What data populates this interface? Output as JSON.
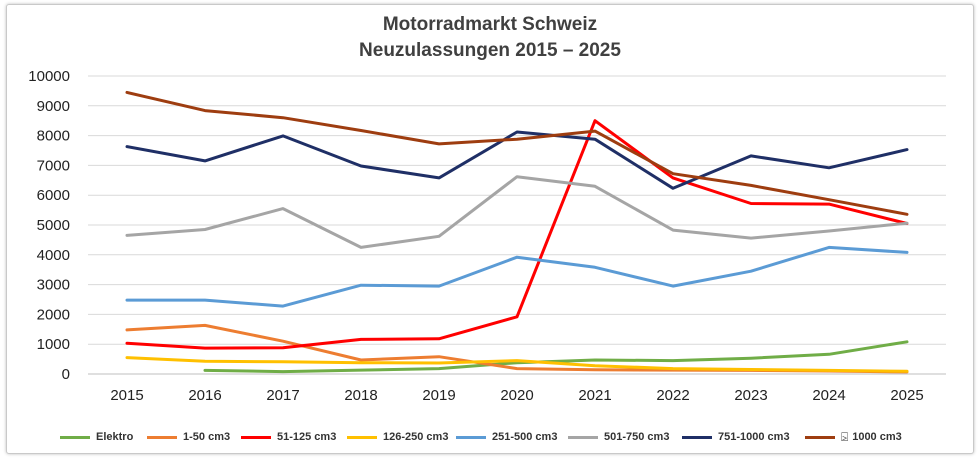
{
  "chart_data": {
    "type": "line",
    "title": "Motorradmarkt Schweiz",
    "subtitle": "Neuzulassungen 2015 – 2025",
    "xlabel": "",
    "ylabel": "",
    "ylim": [
      0,
      10000
    ],
    "yticks": [
      "0",
      "1000",
      "2000",
      "3000",
      "4000",
      "5000",
      "6000",
      "7000",
      "8000",
      "9000",
      "10000"
    ],
    "categories": [
      "2015",
      "2016",
      "2017",
      "2018",
      "2019",
      "2020",
      "2021",
      "2022",
      "2023",
      "2024",
      "2025"
    ],
    "grid": true,
    "legend_position": "bottom",
    "series": [
      {
        "name": "Elektro",
        "color": "#70ad47",
        "values": [
          null,
          120,
          80,
          130,
          180,
          380,
          470,
          450,
          530,
          660,
          1080
        ]
      },
      {
        "name": "1-50 cm3",
        "color": "#ed7d31",
        "values": [
          1480,
          1630,
          1100,
          470,
          580,
          180,
          140,
          130,
          120,
          100,
          70
        ]
      },
      {
        "name": "51-125 cm3",
        "color": "#ff0000",
        "values": [
          1030,
          870,
          880,
          1160,
          1180,
          1920,
          8500,
          6580,
          5720,
          5700,
          5050
        ]
      },
      {
        "name": "126-250 cm3",
        "color": "#ffc000",
        "values": [
          550,
          430,
          410,
          380,
          370,
          450,
          280,
          180,
          150,
          120,
          90
        ]
      },
      {
        "name": "251-500 cm3",
        "color": "#5b9bd5",
        "values": [
          2480,
          2480,
          2280,
          2980,
          2950,
          3920,
          3580,
          2950,
          3450,
          4250,
          4080
        ]
      },
      {
        "name": "501-750 cm3",
        "color": "#a5a5a5",
        "values": [
          4650,
          4850,
          5550,
          4250,
          4620,
          6620,
          6300,
          4830,
          4560,
          4800,
          5060
        ]
      },
      {
        "name": "751-1000 cm3",
        "color": "#1f2f66",
        "values": [
          7630,
          7150,
          7990,
          6980,
          6580,
          8120,
          7880,
          6230,
          7320,
          6920,
          7530
        ]
      },
      {
        "name": "1000 cm3",
        "prefix": "⍄",
        "color": "#9e3d10",
        "values": [
          9450,
          8840,
          8600,
          8170,
          7720,
          7880,
          8150,
          6720,
          6330,
          5850,
          5360
        ]
      }
    ]
  }
}
